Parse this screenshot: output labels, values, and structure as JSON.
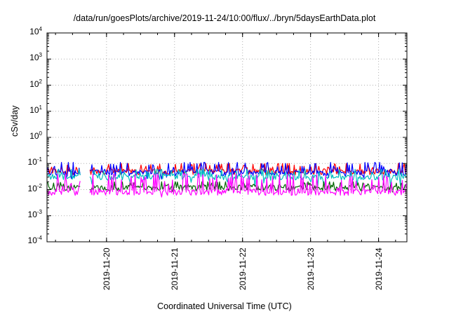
{
  "chart_data": {
    "type": "line",
    "title": "/data/run/goesPlots/archive/2019-11-24/10:00/flux/../bryn/5daysEarthData.plot",
    "xlabel": "Coordinated Universal Time (UTC)",
    "ylabel": "cSv/day",
    "yscale": "log",
    "ylim": [
      0.0001,
      10000
    ],
    "ytick_labels": [
      {
        "base": "10",
        "exp": "4"
      },
      {
        "base": "10",
        "exp": "3"
      },
      {
        "base": "10",
        "exp": "2"
      },
      {
        "base": "10",
        "exp": "1"
      },
      {
        "base": "10",
        "exp": "0"
      },
      {
        "base": "10",
        "exp": "-1"
      },
      {
        "base": "10",
        "exp": "-2"
      },
      {
        "base": "10",
        "exp": "-3"
      },
      {
        "base": "10",
        "exp": "-4"
      }
    ],
    "xlim": [
      "2019-11-19 03:00",
      "2019-11-24 10:00"
    ],
    "xtick_labels": [
      "2019-11-20",
      "2019-11-21",
      "2019-11-22",
      "2019-11-23",
      "2019-11-24"
    ],
    "grid": true,
    "legend": "none",
    "data_gap": [
      "2019-11-19 15:00",
      "2019-11-19 18:00"
    ],
    "series": [
      {
        "color": "#ff0000",
        "base_value": 0.05,
        "low": 0.035,
        "high": 0.1
      },
      {
        "color": "#0000ff",
        "base_value": 0.045,
        "low": 0.025,
        "high": 0.11
      },
      {
        "color": "#00bfbf",
        "base_value": 0.03,
        "low": 0.012,
        "high": 0.06
      },
      {
        "color": "#006400",
        "base_value": 0.012,
        "low": 0.008,
        "high": 0.02
      },
      {
        "color": "#ff00ff",
        "base_value": 0.008,
        "low": 0.005,
        "high": 0.04
      }
    ]
  }
}
